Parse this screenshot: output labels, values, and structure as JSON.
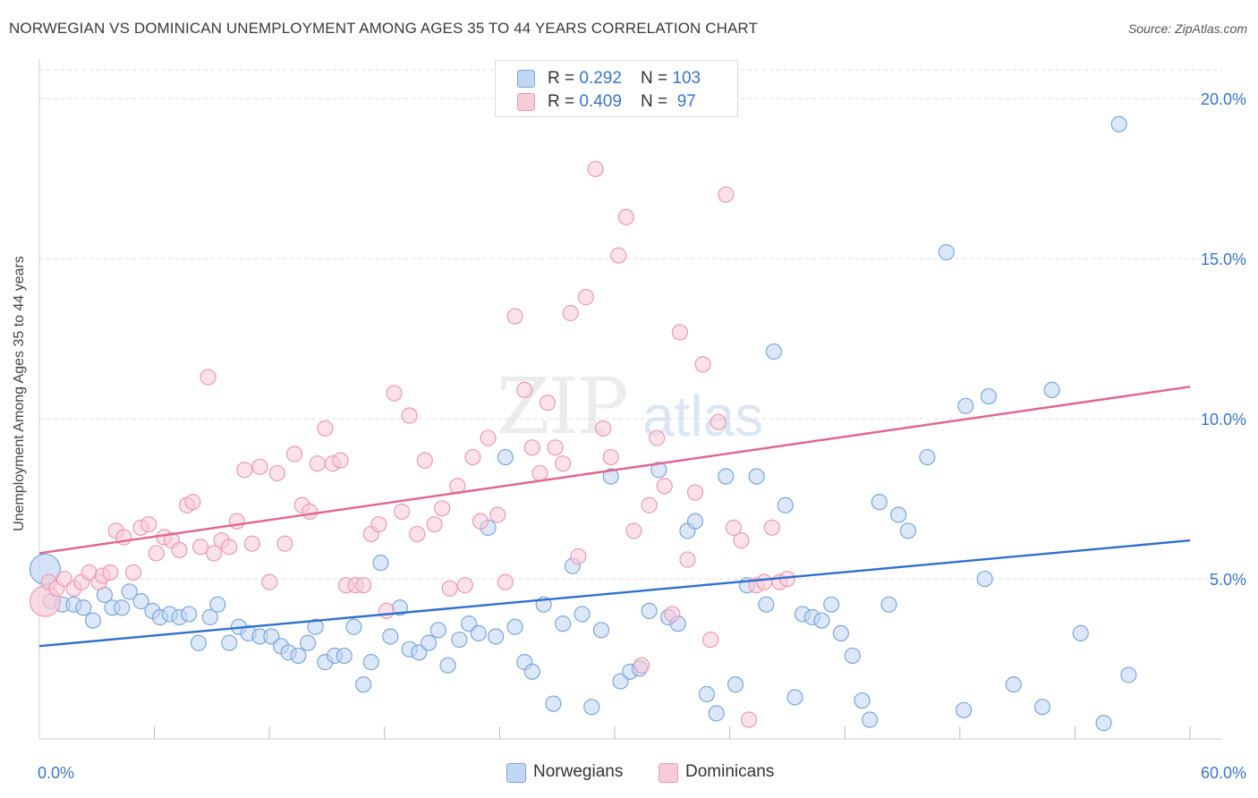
{
  "title": "NORWEGIAN VS DOMINICAN UNEMPLOYMENT AMONG AGES 35 TO 44 YEARS CORRELATION CHART",
  "source": "Source: ZipAtlas.com",
  "watermark": {
    "zip": "ZIP",
    "atlas": "atlas"
  },
  "legend_top": {
    "rows": [
      {
        "r_label": "R = ",
        "r_value": "0.292",
        "n_label": "N = ",
        "n_value": "103"
      },
      {
        "r_label": "R = ",
        "r_value": "0.409",
        "n_label": "N = ",
        "n_value": " 97"
      }
    ]
  },
  "legend_bottom": [
    {
      "label": "Norwegians"
    },
    {
      "label": "Dominicans"
    }
  ],
  "colors": {
    "blue_fill": "#c0d6f2",
    "blue_stroke": "#7ba7dc",
    "blue_line": "#2f6fce",
    "pink_fill": "#f7cbd8",
    "pink_stroke": "#eb9ab4",
    "pink_line": "#e26592",
    "grid": "#dddddd",
    "tick_text": "#3a74c8"
  },
  "chart_data": {
    "type": "scatter",
    "title": "NORWEGIAN VS DOMINICAN UNEMPLOYMENT AMONG AGES 35 TO 44 YEARS CORRELATION CHART",
    "xlabel": "",
    "ylabel": "Unemployment Among Ages 35 to 44 years",
    "xlim": [
      0,
      60
    ],
    "ylim": [
      0,
      20.9
    ],
    "x_tick_labels": [
      {
        "value": 0,
        "label": "0.0%"
      },
      {
        "value": 60,
        "label": "60.0%"
      }
    ],
    "y_tick_labels": [
      {
        "value": 5,
        "label": "5.0%"
      },
      {
        "value": 10,
        "label": "10.0%"
      },
      {
        "value": 15,
        "label": "15.0%"
      },
      {
        "value": 20,
        "label": "20.0%"
      }
    ],
    "x_minor_ticks": [
      6,
      12,
      18,
      24,
      30,
      36,
      42,
      48,
      54,
      60
    ],
    "grid": true,
    "legend": "bottom",
    "series": [
      {
        "name": "Norwegians",
        "r": 0.292,
        "n": 103,
        "trend": {
          "x": [
            0,
            60
          ],
          "y": [
            2.9,
            6.2
          ]
        },
        "points": [
          {
            "x": 0.3,
            "y": 5.3,
            "big": true
          },
          {
            "x": 0.6,
            "y": 4.3
          },
          {
            "x": 1.2,
            "y": 4.2
          },
          {
            "x": 1.8,
            "y": 4.2
          },
          {
            "x": 2.3,
            "y": 4.1
          },
          {
            "x": 2.8,
            "y": 3.7
          },
          {
            "x": 3.4,
            "y": 4.5
          },
          {
            "x": 3.8,
            "y": 4.1
          },
          {
            "x": 4.3,
            "y": 4.1
          },
          {
            "x": 4.7,
            "y": 4.6
          },
          {
            "x": 5.3,
            "y": 4.3
          },
          {
            "x": 5.9,
            "y": 4.0
          },
          {
            "x": 6.3,
            "y": 3.8
          },
          {
            "x": 6.8,
            "y": 3.9
          },
          {
            "x": 7.3,
            "y": 3.8
          },
          {
            "x": 7.8,
            "y": 3.9
          },
          {
            "x": 8.3,
            "y": 3.0
          },
          {
            "x": 8.9,
            "y": 3.8
          },
          {
            "x": 9.3,
            "y": 4.2
          },
          {
            "x": 9.9,
            "y": 3.0
          },
          {
            "x": 10.4,
            "y": 3.5
          },
          {
            "x": 10.9,
            "y": 3.3
          },
          {
            "x": 11.5,
            "y": 3.2
          },
          {
            "x": 12.1,
            "y": 3.2
          },
          {
            "x": 12.6,
            "y": 2.9
          },
          {
            "x": 13.0,
            "y": 2.7
          },
          {
            "x": 13.5,
            "y": 2.6
          },
          {
            "x": 14.0,
            "y": 3.0
          },
          {
            "x": 14.4,
            "y": 3.5
          },
          {
            "x": 14.9,
            "y": 2.4
          },
          {
            "x": 15.4,
            "y": 2.6
          },
          {
            "x": 15.9,
            "y": 2.6
          },
          {
            "x": 16.4,
            "y": 3.5
          },
          {
            "x": 16.9,
            "y": 1.7
          },
          {
            "x": 17.3,
            "y": 2.4
          },
          {
            "x": 17.8,
            "y": 5.5
          },
          {
            "x": 18.3,
            "y": 3.2
          },
          {
            "x": 18.8,
            "y": 4.1
          },
          {
            "x": 19.3,
            "y": 2.8
          },
          {
            "x": 19.8,
            "y": 2.7
          },
          {
            "x": 20.3,
            "y": 3.0
          },
          {
            "x": 20.8,
            "y": 3.4
          },
          {
            "x": 21.3,
            "y": 2.3
          },
          {
            "x": 21.9,
            "y": 3.1
          },
          {
            "x": 22.4,
            "y": 3.6
          },
          {
            "x": 22.9,
            "y": 3.3
          },
          {
            "x": 23.4,
            "y": 6.6
          },
          {
            "x": 23.8,
            "y": 3.2
          },
          {
            "x": 24.3,
            "y": 8.8
          },
          {
            "x": 24.8,
            "y": 3.5
          },
          {
            "x": 25.3,
            "y": 2.4
          },
          {
            "x": 25.7,
            "y": 2.1
          },
          {
            "x": 26.3,
            "y": 4.2
          },
          {
            "x": 26.8,
            "y": 1.1
          },
          {
            "x": 27.3,
            "y": 3.6
          },
          {
            "x": 27.8,
            "y": 5.4
          },
          {
            "x": 28.3,
            "y": 3.9
          },
          {
            "x": 28.8,
            "y": 1.0
          },
          {
            "x": 29.3,
            "y": 3.4
          },
          {
            "x": 29.8,
            "y": 8.2
          },
          {
            "x": 30.3,
            "y": 1.8
          },
          {
            "x": 30.8,
            "y": 2.1
          },
          {
            "x": 31.3,
            "y": 2.2
          },
          {
            "x": 31.8,
            "y": 4.0
          },
          {
            "x": 32.3,
            "y": 8.4
          },
          {
            "x": 32.8,
            "y": 3.8
          },
          {
            "x": 33.3,
            "y": 3.6
          },
          {
            "x": 33.8,
            "y": 6.5
          },
          {
            "x": 34.2,
            "y": 6.8
          },
          {
            "x": 34.8,
            "y": 1.4
          },
          {
            "x": 35.3,
            "y": 0.8
          },
          {
            "x": 35.8,
            "y": 8.2
          },
          {
            "x": 36.3,
            "y": 1.7
          },
          {
            "x": 36.9,
            "y": 4.8
          },
          {
            "x": 37.4,
            "y": 8.2
          },
          {
            "x": 37.9,
            "y": 4.2
          },
          {
            "x": 38.3,
            "y": 12.1
          },
          {
            "x": 38.9,
            "y": 7.3
          },
          {
            "x": 39.4,
            "y": 1.3
          },
          {
            "x": 39.8,
            "y": 3.9
          },
          {
            "x": 40.3,
            "y": 3.8
          },
          {
            "x": 40.8,
            "y": 3.7
          },
          {
            "x": 41.3,
            "y": 4.2
          },
          {
            "x": 41.8,
            "y": 3.3
          },
          {
            "x": 42.4,
            "y": 2.6
          },
          {
            "x": 42.9,
            "y": 1.2
          },
          {
            "x": 43.3,
            "y": 0.6
          },
          {
            "x": 43.8,
            "y": 7.4
          },
          {
            "x": 44.3,
            "y": 4.2
          },
          {
            "x": 44.8,
            "y": 7.0
          },
          {
            "x": 45.3,
            "y": 6.5
          },
          {
            "x": 46.3,
            "y": 8.8
          },
          {
            "x": 47.3,
            "y": 15.2
          },
          {
            "x": 48.2,
            "y": 0.9
          },
          {
            "x": 48.3,
            "y": 10.4
          },
          {
            "x": 49.3,
            "y": 5.0
          },
          {
            "x": 49.5,
            "y": 10.7
          },
          {
            "x": 50.8,
            "y": 1.7
          },
          {
            "x": 52.3,
            "y": 1.0
          },
          {
            "x": 52.8,
            "y": 10.9
          },
          {
            "x": 54.3,
            "y": 3.3
          },
          {
            "x": 55.5,
            "y": 0.5
          },
          {
            "x": 56.3,
            "y": 19.2
          },
          {
            "x": 56.8,
            "y": 2.0
          }
        ]
      },
      {
        "name": "Dominicans",
        "r": 0.409,
        "n": 97,
        "trend": {
          "x": [
            0,
            60
          ],
          "y": [
            5.8,
            11.0
          ]
        },
        "points": [
          {
            "x": 0.3,
            "y": 4.3,
            "big": true
          },
          {
            "x": 0.5,
            "y": 4.9
          },
          {
            "x": 0.9,
            "y": 4.7
          },
          {
            "x": 1.3,
            "y": 5.0
          },
          {
            "x": 1.8,
            "y": 4.7
          },
          {
            "x": 2.2,
            "y": 4.9
          },
          {
            "x": 2.6,
            "y": 5.2
          },
          {
            "x": 3.1,
            "y": 4.9
          },
          {
            "x": 3.3,
            "y": 5.1
          },
          {
            "x": 3.7,
            "y": 5.2
          },
          {
            "x": 4.0,
            "y": 6.5
          },
          {
            "x": 4.4,
            "y": 6.3
          },
          {
            "x": 4.9,
            "y": 5.2
          },
          {
            "x": 5.3,
            "y": 6.6
          },
          {
            "x": 5.7,
            "y": 6.7
          },
          {
            "x": 6.1,
            "y": 5.8
          },
          {
            "x": 6.5,
            "y": 6.3
          },
          {
            "x": 6.9,
            "y": 6.2
          },
          {
            "x": 7.3,
            "y": 5.9
          },
          {
            "x": 7.7,
            "y": 7.3
          },
          {
            "x": 8.0,
            "y": 7.4
          },
          {
            "x": 8.4,
            "y": 6.0
          },
          {
            "x": 8.8,
            "y": 11.3
          },
          {
            "x": 9.1,
            "y": 5.8
          },
          {
            "x": 9.5,
            "y": 6.2
          },
          {
            "x": 9.9,
            "y": 6.0
          },
          {
            "x": 10.3,
            "y": 6.8
          },
          {
            "x": 10.7,
            "y": 8.4
          },
          {
            "x": 11.1,
            "y": 6.1
          },
          {
            "x": 11.5,
            "y": 8.5
          },
          {
            "x": 12.0,
            "y": 4.9
          },
          {
            "x": 12.4,
            "y": 8.3
          },
          {
            "x": 12.8,
            "y": 6.1
          },
          {
            "x": 13.3,
            "y": 8.9
          },
          {
            "x": 13.7,
            "y": 7.3
          },
          {
            "x": 14.1,
            "y": 7.1
          },
          {
            "x": 14.5,
            "y": 8.6
          },
          {
            "x": 14.9,
            "y": 9.7
          },
          {
            "x": 15.3,
            "y": 8.6
          },
          {
            "x": 15.7,
            "y": 8.7
          },
          {
            "x": 16.0,
            "y": 4.8
          },
          {
            "x": 16.5,
            "y": 4.8
          },
          {
            "x": 16.9,
            "y": 4.8
          },
          {
            "x": 17.3,
            "y": 6.4
          },
          {
            "x": 17.7,
            "y": 6.7
          },
          {
            "x": 18.1,
            "y": 4.0
          },
          {
            "x": 18.5,
            "y": 10.8
          },
          {
            "x": 18.9,
            "y": 7.1
          },
          {
            "x": 19.3,
            "y": 10.1
          },
          {
            "x": 19.7,
            "y": 6.4
          },
          {
            "x": 20.1,
            "y": 8.7
          },
          {
            "x": 20.6,
            "y": 6.7
          },
          {
            "x": 21.0,
            "y": 7.2
          },
          {
            "x": 21.4,
            "y": 4.7
          },
          {
            "x": 21.8,
            "y": 7.9
          },
          {
            "x": 22.2,
            "y": 4.8
          },
          {
            "x": 22.6,
            "y": 8.8
          },
          {
            "x": 23.0,
            "y": 6.8
          },
          {
            "x": 23.4,
            "y": 9.4
          },
          {
            "x": 23.9,
            "y": 7.0
          },
          {
            "x": 24.3,
            "y": 4.9
          },
          {
            "x": 24.8,
            "y": 13.2
          },
          {
            "x": 25.3,
            "y": 10.9
          },
          {
            "x": 25.7,
            "y": 9.1
          },
          {
            "x": 26.1,
            "y": 8.3
          },
          {
            "x": 26.5,
            "y": 10.5
          },
          {
            "x": 26.9,
            "y": 9.1
          },
          {
            "x": 27.3,
            "y": 8.6
          },
          {
            "x": 27.7,
            "y": 13.3
          },
          {
            "x": 28.1,
            "y": 5.7
          },
          {
            "x": 28.5,
            "y": 13.8
          },
          {
            "x": 29.0,
            "y": 17.8
          },
          {
            "x": 29.4,
            "y": 9.7
          },
          {
            "x": 29.8,
            "y": 8.8
          },
          {
            "x": 30.2,
            "y": 15.1
          },
          {
            "x": 30.6,
            "y": 16.3
          },
          {
            "x": 31.0,
            "y": 6.5
          },
          {
            "x": 31.4,
            "y": 2.3
          },
          {
            "x": 31.8,
            "y": 7.3
          },
          {
            "x": 32.2,
            "y": 9.4
          },
          {
            "x": 32.6,
            "y": 7.9
          },
          {
            "x": 33.0,
            "y": 3.9
          },
          {
            "x": 33.4,
            "y": 12.7
          },
          {
            "x": 33.8,
            "y": 5.6
          },
          {
            "x": 34.2,
            "y": 7.7
          },
          {
            "x": 34.6,
            "y": 11.7
          },
          {
            "x": 35.0,
            "y": 3.1
          },
          {
            "x": 35.4,
            "y": 9.9
          },
          {
            "x": 35.8,
            "y": 17.0
          },
          {
            "x": 36.2,
            "y": 6.6
          },
          {
            "x": 36.6,
            "y": 6.2
          },
          {
            "x": 37.0,
            "y": 0.6
          },
          {
            "x": 37.4,
            "y": 4.8
          },
          {
            "x": 37.8,
            "y": 4.9
          },
          {
            "x": 38.2,
            "y": 6.6
          },
          {
            "x": 38.6,
            "y": 4.9
          },
          {
            "x": 39.0,
            "y": 5.0
          }
        ]
      }
    ]
  }
}
